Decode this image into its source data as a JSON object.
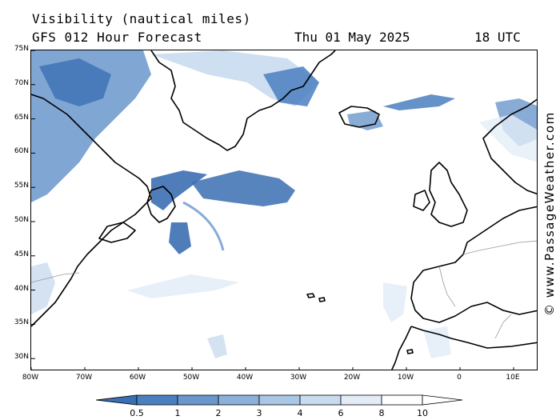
{
  "header": {
    "title": "Visibility (nautical miles)",
    "forecast": "GFS 012 Hour Forecast",
    "date": "Thu 01 May 2025",
    "time": "18 UTC"
  },
  "credit": "© www.PassageWeather.com",
  "lat_labels": [
    "75N",
    "70N",
    "65N",
    "60N",
    "55N",
    "50N",
    "45N",
    "40N",
    "35N",
    "30N"
  ],
  "lon_labels": [
    "80W",
    "70W",
    "60W",
    "50W",
    "40W",
    "30W",
    "20W",
    "10W",
    "0",
    "10E"
  ],
  "legend": {
    "labels": [
      "0.5",
      "1",
      "2",
      "3",
      "4",
      "6",
      "8",
      "10"
    ],
    "colors": [
      "#3b6fb3",
      "#4a7fc0",
      "#6a97cc",
      "#8bb0d9",
      "#aac6e5",
      "#c9dbef",
      "#e4edf7",
      "#ffffff"
    ]
  },
  "map": {
    "projection": "lat-lon",
    "lat_range": [
      28,
      75
    ],
    "lon_range": [
      -80,
      15
    ]
  }
}
